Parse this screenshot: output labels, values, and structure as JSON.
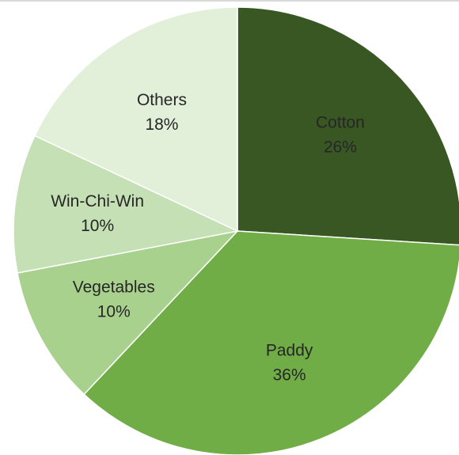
{
  "chart_data": {
    "type": "pie",
    "title": "",
    "start_angle_deg": 0,
    "direction": "clockwise",
    "slices": [
      {
        "label": "Cotton",
        "value": 26,
        "display": "26%",
        "color": "#385723"
      },
      {
        "label": "Paddy",
        "value": 36,
        "display": "36%",
        "color": "#70ad47"
      },
      {
        "label": "Vegetables",
        "value": 10,
        "display": "10%",
        "color": "#a9d18e"
      },
      {
        "label": "Win-Chi-Win",
        "value": 10,
        "display": "10%",
        "color": "#c5e0b4"
      },
      {
        "label": "Others",
        "value": 18,
        "display": "18%",
        "color": "#e2f0d9"
      }
    ],
    "legend": "none",
    "data_labels": "inside"
  }
}
